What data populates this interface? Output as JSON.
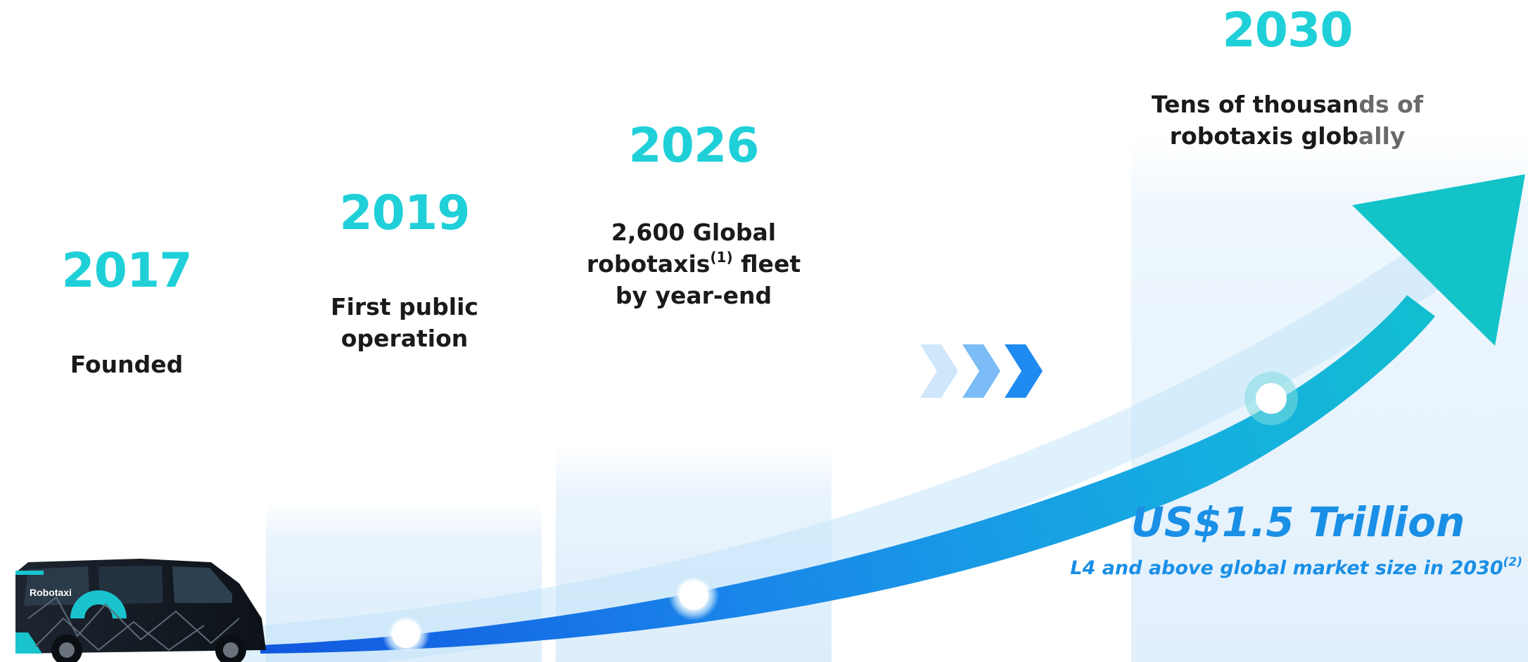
{
  "colors": {
    "year": "#1fd0d8",
    "text": "#1a1a1a",
    "accent_blue": "#1a8fe6",
    "arrow_start": "#1565e0",
    "arrow_end": "#10c8cc"
  },
  "milestones": [
    {
      "year": "2017",
      "line1": "Founded"
    },
    {
      "year": "2019",
      "line1": "First public",
      "line2": "operation"
    },
    {
      "year": "2026",
      "line1": "2,600 Global",
      "line2a": "robotaxis",
      "line2_sup": "(1)",
      "line2b": " fleet",
      "line3": "by year-end"
    },
    {
      "year": "2030",
      "line1a": "Tens of thousan",
      "line1b": "ds of",
      "line2a": "robotaxis glob",
      "line2b": "ally"
    }
  ],
  "market": {
    "value": "US$1.5 Trillion",
    "note": "L4 and above global market size in 2030",
    "note_sup": "(2)"
  },
  "vehicle": {
    "label": "Robotaxi",
    "icon": "robotaxi-van-icon"
  },
  "chevrons_icon": "triple-chevron-right-icon"
}
